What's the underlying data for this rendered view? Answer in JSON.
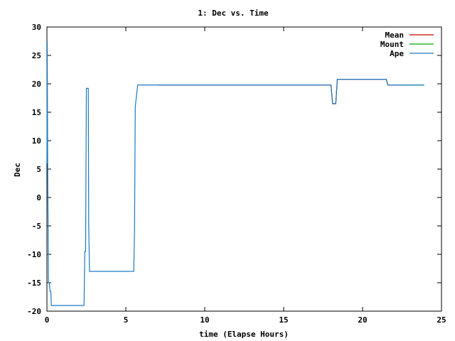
{
  "chart_data": {
    "type": "line",
    "title": "1: Dec vs. Time",
    "xlabel": "time (Elapse Hours)",
    "ylabel": "Dec",
    "xlim": [
      0,
      25
    ],
    "ylim": [
      -20,
      30
    ],
    "xticks": [
      0,
      5,
      10,
      15,
      20,
      25
    ],
    "yticks": [
      -20,
      -15,
      -10,
      -5,
      0,
      5,
      10,
      15,
      20,
      25,
      30
    ],
    "grid": false,
    "legend_position": "top-right",
    "series": [
      {
        "name": "Mean",
        "color": "#cc0000",
        "points": [
          [
            7.05,
            19.8
          ],
          [
            18.0,
            19.8
          ],
          [
            18.1,
            16.5
          ],
          [
            18.3,
            16.5
          ],
          [
            18.4,
            20.8
          ],
          [
            21.5,
            20.8
          ],
          [
            21.6,
            19.8
          ],
          [
            22.6,
            19.8
          ]
        ]
      },
      {
        "name": "Mount",
        "color": "#00aa00",
        "points": [
          [
            22.6,
            19.8
          ],
          [
            23.9,
            19.8
          ]
        ]
      },
      {
        "name": "Ape",
        "color": "#1a7ac4",
        "points": [
          [
            0.0,
            6.0
          ],
          [
            0.02,
            27.5
          ],
          [
            0.05,
            5.0
          ],
          [
            0.1,
            -15.0
          ],
          [
            0.15,
            -15.0
          ],
          [
            0.2,
            -16.5
          ],
          [
            0.25,
            -16.5
          ],
          [
            0.28,
            -19.0
          ],
          [
            2.35,
            -19.0
          ],
          [
            2.4,
            -9.5
          ],
          [
            2.45,
            -9.5
          ],
          [
            2.5,
            19.2
          ],
          [
            2.62,
            19.2
          ],
          [
            2.65,
            -5.0
          ],
          [
            2.7,
            -13.0
          ],
          [
            5.5,
            -13.0
          ],
          [
            5.55,
            -6.0
          ],
          [
            5.6,
            16.0
          ],
          [
            5.7,
            18.5
          ],
          [
            5.75,
            19.8
          ],
          [
            18.0,
            19.8
          ],
          [
            18.1,
            16.5
          ],
          [
            18.3,
            16.5
          ],
          [
            18.4,
            20.8
          ],
          [
            21.5,
            20.8
          ],
          [
            21.6,
            19.8
          ],
          [
            23.9,
            19.8
          ]
        ]
      }
    ]
  }
}
